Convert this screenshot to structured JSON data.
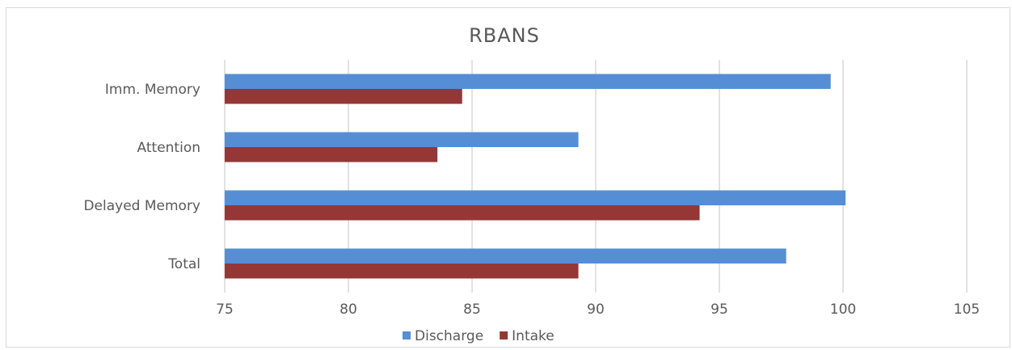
{
  "chart_data": {
    "type": "bar",
    "orientation": "horizontal",
    "title": "RBANS",
    "categories": [
      "Imm. Memory",
      "Attention",
      "Delayed Memory",
      "Total"
    ],
    "series": [
      {
        "name": "Discharge",
        "color": "#558ed5",
        "values": [
          99.5,
          89.3,
          100.1,
          97.7
        ]
      },
      {
        "name": "Intake",
        "color": "#953735",
        "values": [
          84.6,
          83.6,
          94.2,
          89.3
        ]
      }
    ],
    "xlim": [
      75,
      105
    ],
    "xticks": [
      "75",
      "80",
      "85",
      "90",
      "95",
      "100",
      "105"
    ],
    "grid": true,
    "legend_position": "bottom"
  }
}
